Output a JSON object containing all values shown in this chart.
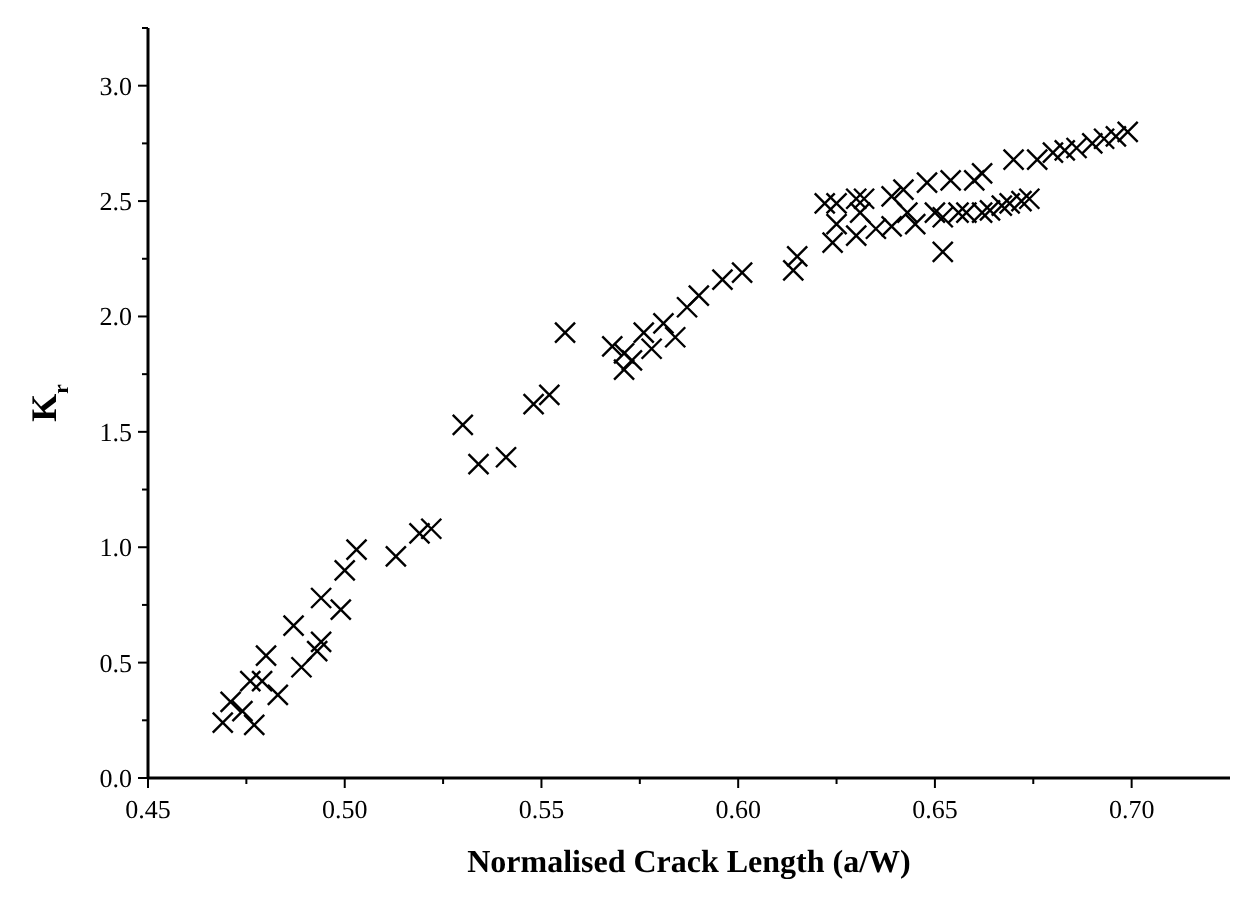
{
  "chart_data": {
    "type": "scatter",
    "xlabel": "Normalised Crack Length (a/W)",
    "ylabel": "K$_{r}$",
    "marker": "cross",
    "grid": false,
    "xlim": [
      0.45,
      0.725
    ],
    "ylim": [
      0,
      3.25
    ],
    "xticks": [
      0.45,
      {
        "value": 0.475,
        "label": null
      },
      {
        "value": 0.5,
        "label": "0.50"
      },
      {
        "value": 0.525,
        "label": null
      },
      0.55,
      {
        "value": 0.575,
        "label": null
      },
      {
        "value": 0.6,
        "label": "0.60"
      },
      {
        "value": 0.625,
        "label": null
      },
      0.65,
      {
        "value": 0.675,
        "label": null
      },
      {
        "value": 0.7,
        "label": "0.70"
      }
    ],
    "yticks": [
      {
        "value": 0,
        "label": "0.0"
      },
      {
        "value": 0.25,
        "label": null
      },
      0.5,
      {
        "value": 0.75,
        "label": null
      },
      {
        "value": 1,
        "label": "1.0"
      },
      {
        "value": 1.25,
        "label": null
      },
      1.5,
      {
        "value": 1.75,
        "label": null
      },
      {
        "value": 2,
        "label": "2.0"
      },
      {
        "value": 2.25,
        "label": null
      },
      2.5,
      {
        "value": 2.75,
        "label": null
      },
      {
        "value": 3,
        "label": "3.0"
      },
      {
        "value": 3.25,
        "label": null
      }
    ],
    "series": [
      {
        "color": "#000000",
        "x": [
          0.469,
          0.471,
          0.474,
          0.476,
          0.477,
          0.479,
          0.48,
          0.483,
          0.487,
          0.489,
          0.493,
          0.494,
          0.494,
          0.499,
          0.5,
          0.503,
          0.513,
          0.519,
          0.522,
          0.53,
          0.534,
          0.541,
          0.548,
          0.552,
          0.556,
          0.568,
          0.571,
          0.571,
          0.573,
          0.576,
          0.578,
          0.581,
          0.584,
          0.587,
          0.59,
          0.596,
          0.601,
          0.614,
          0.615,
          0.622,
          0.624,
          0.625,
          0.625,
          0.63,
          0.63,
          0.632,
          0.631,
          0.635,
          0.639,
          0.639,
          0.642,
          0.643,
          0.645,
          0.648,
          0.65,
          0.652,
          0.652,
          0.654,
          0.656,
          0.658,
          0.66,
          0.662,
          0.662,
          0.664,
          0.667,
          0.669,
          0.67,
          0.672,
          0.674,
          0.676,
          0.68,
          0.683,
          0.686,
          0.69,
          0.693,
          0.696,
          0.699
        ],
        "values": [
          0.24,
          0.33,
          0.29,
          0.42,
          0.23,
          0.42,
          0.53,
          0.36,
          0.66,
          0.48,
          0.55,
          0.59,
          0.78,
          0.73,
          0.9,
          0.99,
          0.96,
          1.06,
          1.08,
          1.53,
          1.36,
          1.39,
          1.62,
          1.66,
          1.93,
          1.87,
          1.84,
          1.77,
          1.81,
          1.93,
          1.86,
          1.97,
          1.91,
          2.04,
          2.09,
          2.16,
          2.19,
          2.2,
          2.26,
          2.49,
          2.32,
          2.49,
          2.4,
          2.35,
          2.51,
          2.51,
          2.45,
          2.38,
          2.52,
          2.39,
          2.55,
          2.45,
          2.4,
          2.58,
          2.45,
          2.43,
          2.28,
          2.59,
          2.45,
          2.45,
          2.59,
          2.62,
          2.45,
          2.46,
          2.48,
          2.49,
          2.68,
          2.5,
          2.51,
          2.68,
          2.71,
          2.72,
          2.73,
          2.75,
          2.77,
          2.78,
          2.8
        ]
      }
    ]
  }
}
